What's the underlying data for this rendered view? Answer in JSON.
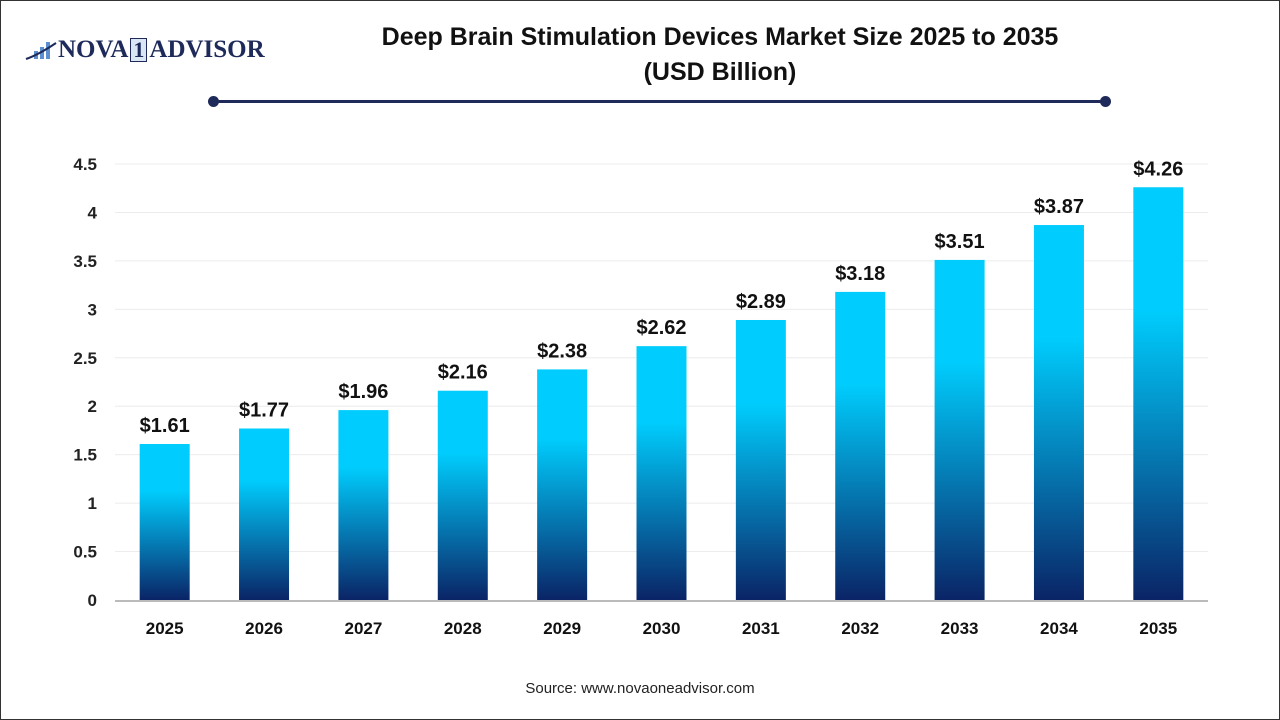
{
  "logo": {
    "text_left": "NOVA",
    "text_mid": "1",
    "text_right": "ADVISOR"
  },
  "title": "Deep Brain Stimulation Devices Market Size 2025 to 2035",
  "subtitle": "(USD Billion)",
  "source": "Source: www.novaoneadvisor.com",
  "colors": {
    "bar_top": "#00cdfd",
    "bar_bottom": "#0a2466",
    "title_rule": "#1e2a5a"
  },
  "chart_data": {
    "type": "bar",
    "categories": [
      "2025",
      "2026",
      "2027",
      "2028",
      "2029",
      "2030",
      "2031",
      "2032",
      "2033",
      "2034",
      "2035"
    ],
    "values": [
      1.61,
      1.77,
      1.96,
      2.16,
      2.38,
      2.62,
      2.89,
      3.18,
      3.51,
      3.87,
      4.26
    ],
    "data_labels": [
      "$1.61",
      "$1.77",
      "$1.96",
      "$2.16",
      "$2.38",
      "$2.62",
      "$2.89",
      "$3.18",
      "$3.51",
      "$3.87",
      "$4.26"
    ],
    "yticks": [
      "0",
      "0.5",
      "1",
      "1.5",
      "2",
      "2.5",
      "3",
      "3.5",
      "4",
      "4.5"
    ],
    "ylim": [
      0,
      4.5
    ],
    "grid": true,
    "xlabel": "",
    "ylabel": ""
  }
}
